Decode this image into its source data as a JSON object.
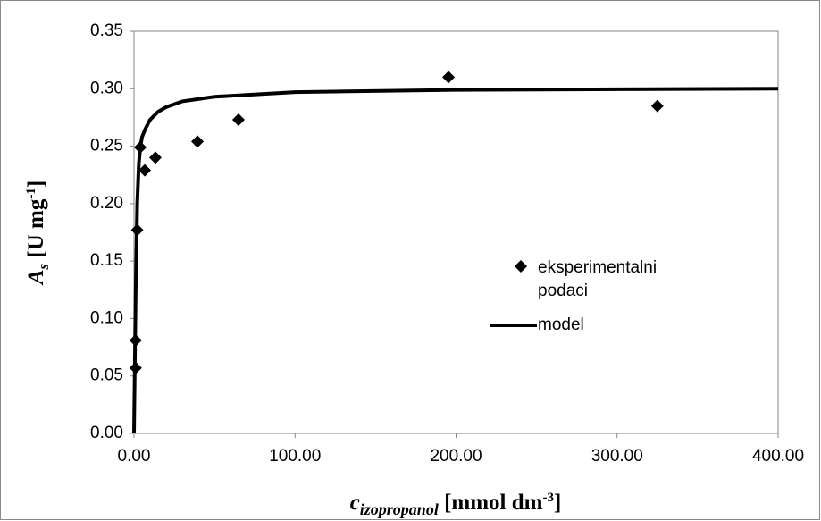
{
  "chart_data": {
    "type": "scatter",
    "xlabel": {
      "main": "c",
      "sub": "izopropanol",
      "rest": " [mmol dm",
      "sup": "-3",
      "end": "]"
    },
    "ylabel": {
      "main": "A",
      "sub": "s",
      "rest": " [U mg",
      "sup": "-1",
      "end": "]"
    },
    "xlim": [
      0,
      400
    ],
    "ylim": [
      0,
      0.35
    ],
    "xticks": [
      {
        "value": 0,
        "label": "0.00"
      },
      {
        "value": 100,
        "label": "100.00"
      },
      {
        "value": 200,
        "label": "200.00"
      },
      {
        "value": 300,
        "label": "300.00"
      },
      {
        "value": 400,
        "label": "400.00"
      }
    ],
    "yticks": [
      {
        "value": 0,
        "label": "0.00"
      },
      {
        "value": 0.05,
        "label": "0.05"
      },
      {
        "value": 0.1,
        "label": "0.10"
      },
      {
        "value": 0.15,
        "label": "0.15"
      },
      {
        "value": 0.2,
        "label": "0.20"
      },
      {
        "value": 0.25,
        "label": "0.25"
      },
      {
        "value": 0.3,
        "label": "0.30"
      },
      {
        "value": 0.35,
        "label": "0.35"
      }
    ],
    "series": [
      {
        "name": "eksperimentalni podaci",
        "type": "scatter",
        "color": "#000000",
        "x": [
          1,
          1,
          2,
          3.9,
          6.7,
          13.3,
          39.4,
          64.9,
          195.3,
          325
        ],
        "values": [
          0.057,
          0.081,
          0.177,
          0.249,
          0.229,
          0.24,
          0.254,
          0.273,
          0.31,
          0.285
        ]
      },
      {
        "name": "model",
        "type": "line",
        "color": "#000000",
        "x": [
          0,
          1,
          2,
          3,
          4,
          5,
          7,
          10,
          15,
          20,
          30,
          50,
          100,
          200,
          300,
          400
        ],
        "values": [
          0,
          0.12,
          0.2,
          0.235,
          0.25,
          0.258,
          0.265,
          0.273,
          0.28,
          0.284,
          0.289,
          0.293,
          0.297,
          0.299,
          0.2995,
          0.3
        ]
      }
    ]
  }
}
